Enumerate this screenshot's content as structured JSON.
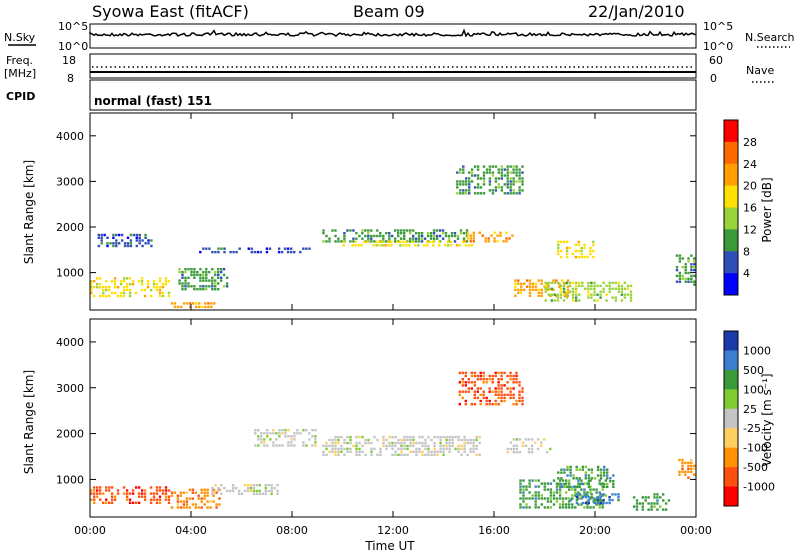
{
  "header": {
    "title_left": "Syowa East (fitACF)",
    "title_center": "Beam 09",
    "title_right": "22/Jan/2010"
  },
  "status_panels": {
    "nsky": {
      "label": "N.Sky",
      "ticks": [
        "10^5",
        "10^0"
      ]
    },
    "nsearch": {
      "label": "N.Search",
      "ticks": [
        "10^5",
        "10^0"
      ]
    },
    "freq": {
      "label_line1": "Freq.",
      "label_line2": "[MHz]",
      "ticks": [
        "18",
        "8"
      ]
    },
    "nave": {
      "label": "Nave",
      "ticks": [
        "60",
        "0"
      ]
    },
    "cpid": {
      "label": "CPID",
      "value": "normal (fast) 151"
    }
  },
  "chart_data": [
    {
      "type": "heatmap",
      "name": "power",
      "ylabel": "Slant Range [km]",
      "ylim": [
        180,
        4500
      ],
      "y_ticks": [
        "4000",
        "3000",
        "2000",
        "1000"
      ],
      "x_ticks": [
        "00:00",
        "04:00",
        "08:00",
        "12:00",
        "16:00",
        "20:00",
        "00:00"
      ],
      "xlim_hours": [
        0,
        24
      ],
      "colorbar": {
        "label": "Power [dB]",
        "labels": [
          "28",
          "24",
          "20",
          "16",
          "12",
          "8",
          "4"
        ],
        "colors": [
          "#ff0000",
          "#ff6a00",
          "#ffa000",
          "#ffe000",
          "#9ad23a",
          "#3a9a3a",
          "#3050b8",
          "#0000ff"
        ]
      },
      "echo_bands": [
        {
          "t0": 0.0,
          "t1": 3.2,
          "r0": 450,
          "r1": 900,
          "v": 20
        },
        {
          "t0": 0.3,
          "t1": 2.5,
          "r0": 1550,
          "r1": 1850,
          "v": 8
        },
        {
          "t0": 3.2,
          "t1": 5.0,
          "r0": 200,
          "r1": 350,
          "v": 24
        },
        {
          "t0": 3.5,
          "t1": 5.5,
          "r0": 600,
          "r1": 1100,
          "v": 12
        },
        {
          "t0": 4.2,
          "t1": 9.0,
          "r0": 1400,
          "r1": 1550,
          "v": 8
        },
        {
          "t0": 9.2,
          "t1": 15.0,
          "r0": 1650,
          "r1": 1950,
          "v": 12
        },
        {
          "t0": 10.0,
          "t1": 15.2,
          "r0": 1550,
          "r1": 1700,
          "v": 20
        },
        {
          "t0": 14.8,
          "t1": 16.8,
          "r0": 1650,
          "r1": 1900,
          "v": 24
        },
        {
          "t0": 14.5,
          "t1": 17.2,
          "r0": 2700,
          "r1": 3350,
          "v": 12
        },
        {
          "t0": 16.8,
          "t1": 19.0,
          "r0": 450,
          "r1": 850,
          "v": 24
        },
        {
          "t0": 18.0,
          "t1": 21.5,
          "r0": 350,
          "r1": 800,
          "v": 16
        },
        {
          "t0": 18.5,
          "t1": 20.0,
          "r0": 1300,
          "r1": 1700,
          "v": 20
        },
        {
          "t0": 23.2,
          "t1": 24.0,
          "r0": 700,
          "r1": 1400,
          "v": 12
        }
      ]
    },
    {
      "type": "heatmap",
      "name": "velocity",
      "ylabel": "Slant Range [km]",
      "ylim": [
        180,
        4500
      ],
      "y_ticks": [
        "4000",
        "3000",
        "2000",
        "1000"
      ],
      "x_ticks": [
        "00:00",
        "04:00",
        "08:00",
        "12:00",
        "16:00",
        "20:00",
        "00:00"
      ],
      "xlabel": "Time UT",
      "xlim_hours": [
        0,
        24
      ],
      "colorbar": {
        "label": "Velocity [m s⁻¹]",
        "labels": [
          "1000",
          "500",
          "100",
          "25",
          "-25",
          "-100",
          "-500",
          "-1000"
        ],
        "colors": [
          "#1a3ca8",
          "#3c7fd0",
          "#3a9a3a",
          "#80cc30",
          "#c4c4c4",
          "#ffd060",
          "#ff9000",
          "#ff5010",
          "#ff0000"
        ]
      },
      "echo_bands": [
        {
          "t0": 0.0,
          "t1": 3.2,
          "r0": 450,
          "r1": 850,
          "v": -600
        },
        {
          "t0": 3.2,
          "t1": 5.2,
          "r0": 350,
          "r1": 800,
          "v": -150
        },
        {
          "t0": 4.8,
          "t1": 7.5,
          "r0": 650,
          "r1": 900,
          "v": 0
        },
        {
          "t0": 6.5,
          "t1": 9.0,
          "r0": 1700,
          "r1": 2100,
          "v": 0
        },
        {
          "t0": 9.2,
          "t1": 15.5,
          "r0": 1500,
          "r1": 1950,
          "v": 0
        },
        {
          "t0": 14.6,
          "t1": 17.2,
          "r0": 2600,
          "r1": 3350,
          "v": -600
        },
        {
          "t0": 16.5,
          "t1": 18.3,
          "r0": 1550,
          "r1": 1900,
          "v": 0
        },
        {
          "t0": 17.0,
          "t1": 20.5,
          "r0": 350,
          "r1": 1000,
          "v": 150
        },
        {
          "t0": 18.5,
          "t1": 20.8,
          "r0": 800,
          "r1": 1300,
          "v": 400
        },
        {
          "t0": 19.0,
          "t1": 21.0,
          "r0": 450,
          "r1": 700,
          "v": 800
        },
        {
          "t0": 21.5,
          "t1": 23.0,
          "r0": 300,
          "r1": 700,
          "v": 150
        },
        {
          "t0": 23.3,
          "t1": 24.0,
          "r0": 1000,
          "r1": 1450,
          "v": -150
        }
      ]
    }
  ]
}
